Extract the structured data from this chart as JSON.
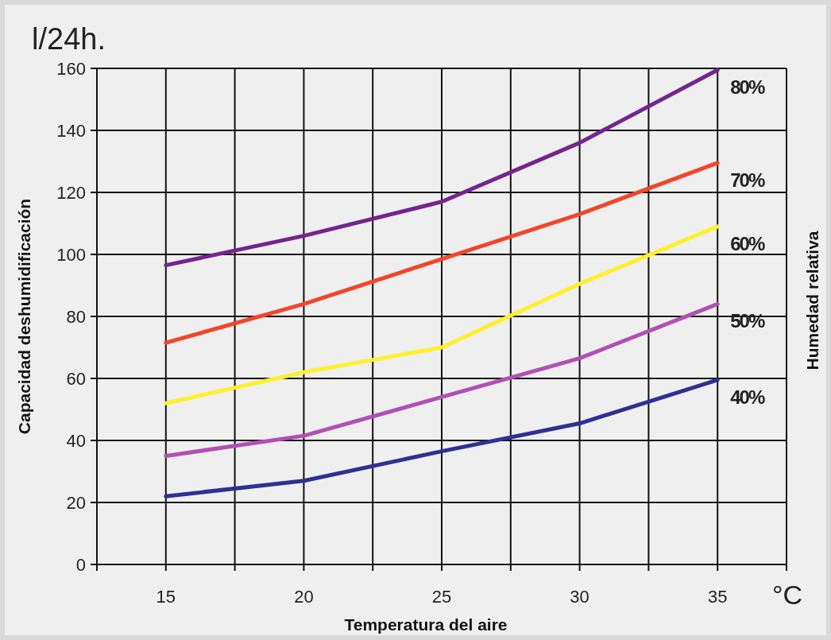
{
  "chart_data": {
    "type": "line",
    "xlabel": "Temperatura del aire",
    "ylabel": "Capacidad deshumidificación",
    "y2label": "Humedad relativa",
    "annotations": [
      "l/24h.",
      "°C"
    ],
    "x": [
      15,
      20,
      25,
      30,
      35
    ],
    "series": [
      {
        "name": "80%",
        "color": "#74248f",
        "values": [
          96.5,
          106,
          117,
          136,
          159.5
        ]
      },
      {
        "name": "70%",
        "color": "#f2452a",
        "values": [
          71.5,
          84,
          98.5,
          113,
          129.5
        ]
      },
      {
        "name": "60%",
        "color": "#fff02a",
        "values": [
          52,
          62,
          70,
          90.5,
          109
        ]
      },
      {
        "name": "50%",
        "color": "#b050b4",
        "values": [
          35,
          41.5,
          54,
          66.5,
          84
        ]
      },
      {
        "name": "40%",
        "color": "#2e3192",
        "values": [
          22,
          27,
          36.5,
          45.5,
          59.5
        ]
      }
    ],
    "xlim": [
      12.5,
      37.5
    ],
    "xticks": [
      {
        "value": 12.5,
        "label": null
      },
      15,
      {
        "value": 17.5,
        "label": null
      },
      20,
      {
        "value": 22.5,
        "label": null
      },
      25,
      {
        "value": 27.5,
        "label": null
      },
      30,
      {
        "value": 32.5,
        "label": null
      },
      35,
      {
        "value": 37.5,
        "label": null
      }
    ],
    "ylim": [
      0,
      160
    ],
    "yticks": [
      0,
      20,
      40,
      60,
      80,
      100,
      120,
      140,
      160
    ],
    "grid": true,
    "marker": "none",
    "line_style": "solid"
  }
}
